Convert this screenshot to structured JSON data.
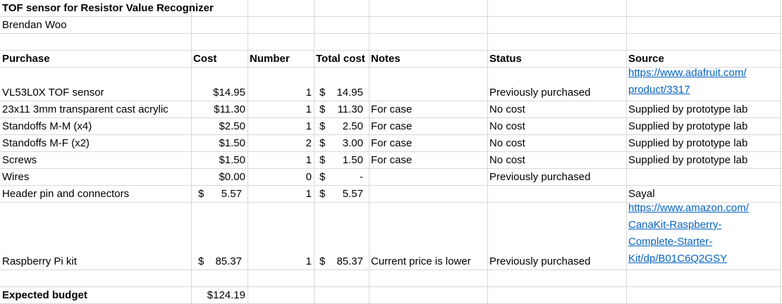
{
  "title": "TOF sensor for Resistor Value Recognizer",
  "author": "Brendan Woo",
  "headers": {
    "purchase": "Purchase",
    "cost": "Cost",
    "number": "Number",
    "total": "Total cost",
    "notes": "Notes",
    "status": "Status",
    "source": "Source"
  },
  "rows": [
    {
      "purchase": "VL53L0X TOF sensor",
      "cost": "$14.95",
      "number": "1",
      "total_sym": "$",
      "total_val": "14.95",
      "notes": "",
      "status": "Previously purchased",
      "source": [
        "https://www.adafruit.com/",
        "product/3317"
      ],
      "source_link": true
    },
    {
      "purchase": "23x11 3mm transparent cast acrylic",
      "cost": "$11.30",
      "number": "1",
      "total_sym": "$",
      "total_val": "11.30",
      "notes": "For case",
      "status": "No cost",
      "source": [
        "Supplied by prototype lab"
      ],
      "source_link": false
    },
    {
      "purchase": "Standoffs M-M (x4)",
      "cost": "$2.50",
      "number": "1",
      "total_sym": "$",
      "total_val": "2.50",
      "notes": "For case",
      "status": "No cost",
      "source": [
        "Supplied by prototype lab"
      ],
      "source_link": false
    },
    {
      "purchase": "Standoffs M-F (x2)",
      "cost": "$1.50",
      "number": "2",
      "total_sym": "$",
      "total_val": "3.00",
      "notes": "For case",
      "status": "No cost",
      "source": [
        "Supplied by prototype lab"
      ],
      "source_link": false
    },
    {
      "purchase": "Screws",
      "cost": "$1.50",
      "number": "1",
      "total_sym": "$",
      "total_val": "1.50",
      "notes": "For case",
      "status": "No cost",
      "source": [
        "Supplied by prototype lab"
      ],
      "source_link": false
    },
    {
      "purchase": "Wires",
      "cost": "$0.00",
      "number": "0",
      "total_sym": "$",
      "total_val": "-",
      "notes": "",
      "status": "Previously purchased",
      "source": [],
      "source_link": false
    },
    {
      "purchase": "Header pin and connectors",
      "cost_sym": "$",
      "cost": "5.57",
      "number": "1",
      "total_sym": "$",
      "total_val": "5.57",
      "notes": "",
      "status": "",
      "source": [
        "Sayal"
      ],
      "source_link": false
    },
    {
      "purchase": "Raspberry Pi kit",
      "cost_sym": "$",
      "cost": "85.37",
      "number": "1",
      "total_sym": "$",
      "total_val": "85.37",
      "notes": "Current price is lower",
      "status": "Previously purchased",
      "source": [
        "https://www.amazon.com/",
        "CanaKit-Raspberry-",
        "Complete-Starter-",
        "Kit/dp/B01C6Q2GSY"
      ],
      "source_link": true
    }
  ],
  "budget": {
    "label": "Expected budget",
    "value": "$124.19"
  }
}
